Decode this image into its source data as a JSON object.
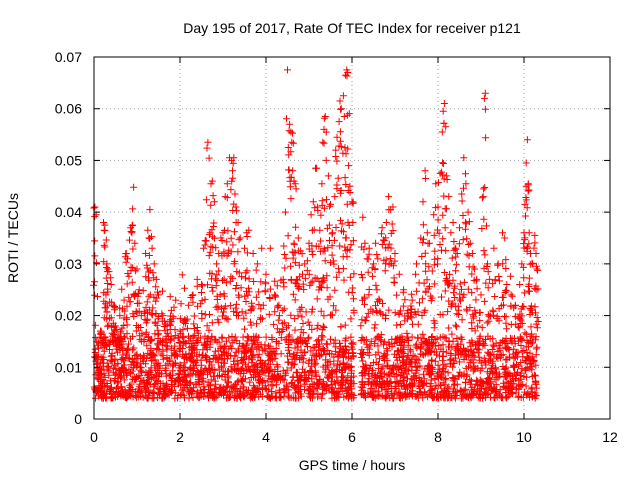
{
  "chart_data": {
    "type": "scatter",
    "title": "Day 195 of 2017, Rate Of TEC Index for receiver p121",
    "xlabel": "GPS time / hours",
    "ylabel": "ROTI / TECUs",
    "xlim": [
      0,
      12
    ],
    "ylim": [
      0,
      0.07
    ],
    "xticks": [
      0,
      2,
      4,
      6,
      8,
      10,
      12
    ],
    "xtick_labels": [
      "0",
      "2",
      "4",
      "6",
      "8",
      "10",
      "12"
    ],
    "yticks": [
      0,
      0.01,
      0.02,
      0.03,
      0.04,
      0.05,
      0.06,
      0.07
    ],
    "ytick_labels": [
      "0",
      "0.01",
      "0.02",
      "0.03",
      "0.04",
      "0.05",
      "0.06",
      "0.07"
    ],
    "grid": true,
    "marker": "+",
    "color": "#ff0000",
    "data_extent_hours": [
      0,
      10.3
    ],
    "gap_hours": [
      6.05,
      6.2
    ],
    "baseline_range": [
      0.004,
      0.016
    ],
    "series": [
      {
        "name": "ROTI",
        "points": [
          [
            0.02,
            0.041
          ],
          [
            0.05,
            0.0395
          ],
          [
            0.08,
            0.012
          ],
          [
            0.1,
            0.009
          ],
          [
            0.12,
            0.006
          ],
          [
            0.15,
            0.017
          ],
          [
            0.22,
            0.038
          ],
          [
            0.25,
            0.0375
          ],
          [
            0.3,
            0.03
          ],
          [
            0.32,
            0.029
          ],
          [
            0.35,
            0.0285
          ],
          [
            0.28,
            0.024
          ],
          [
            0.4,
            0.026
          ],
          [
            0.45,
            0.022
          ],
          [
            0.5,
            0.018
          ],
          [
            0.55,
            0.015
          ],
          [
            0.6,
            0.02
          ],
          [
            0.7,
            0.023
          ],
          [
            0.75,
            0.032
          ],
          [
            0.78,
            0.031
          ],
          [
            0.85,
            0.037
          ],
          [
            0.88,
            0.036
          ],
          [
            0.9,
            0.0375
          ],
          [
            0.92,
            0.0448
          ],
          [
            0.95,
            0.034
          ],
          [
            1.0,
            0.029
          ],
          [
            1.05,
            0.025
          ],
          [
            1.1,
            0.02
          ],
          [
            1.2,
            0.032
          ],
          [
            1.25,
            0.0365
          ],
          [
            1.28,
            0.035
          ],
          [
            1.3,
            0.0405
          ],
          [
            1.35,
            0.033
          ],
          [
            1.4,
            0.03
          ],
          [
            1.45,
            0.027
          ],
          [
            1.5,
            0.024
          ],
          [
            1.6,
            0.02
          ],
          [
            1.7,
            0.018
          ],
          [
            1.8,
            0.021
          ],
          [
            1.9,
            0.023
          ],
          [
            2.0,
            0.017
          ],
          [
            2.1,
            0.019
          ],
          [
            2.2,
            0.022
          ],
          [
            2.3,
            0.024
          ],
          [
            2.4,
            0.027
          ],
          [
            2.5,
            0.026
          ],
          [
            2.55,
            0.033
          ],
          [
            2.6,
            0.0345
          ],
          [
            2.65,
            0.0535
          ],
          [
            2.7,
            0.036
          ],
          [
            2.72,
            0.0455
          ],
          [
            2.75,
            0.046
          ],
          [
            2.8,
            0.042
          ],
          [
            2.85,
            0.03
          ],
          [
            2.9,
            0.032
          ],
          [
            2.95,
            0.035
          ],
          [
            3.0,
            0.036
          ],
          [
            3.05,
            0.043
          ],
          [
            3.1,
            0.0455
          ],
          [
            3.15,
            0.0505
          ],
          [
            3.2,
            0.05
          ],
          [
            3.22,
            0.048
          ],
          [
            3.25,
            0.0505
          ],
          [
            3.28,
            0.0435
          ],
          [
            3.3,
            0.041
          ],
          [
            3.35,
            0.038
          ],
          [
            3.4,
            0.035
          ],
          [
            3.5,
            0.033
          ],
          [
            3.55,
            0.036
          ],
          [
            3.6,
            0.0365
          ],
          [
            3.7,
            0.032
          ],
          [
            3.8,
            0.03
          ],
          [
            3.9,
            0.033
          ],
          [
            4.0,
            0.028
          ],
          [
            4.1,
            0.033
          ],
          [
            4.2,
            0.024
          ],
          [
            4.3,
            0.022
          ],
          [
            4.4,
            0.027
          ],
          [
            4.45,
            0.04
          ],
          [
            4.5,
            0.0675
          ],
          [
            4.55,
            0.057
          ],
          [
            4.58,
            0.0555
          ],
          [
            4.6,
            0.0535
          ],
          [
            4.62,
            0.048
          ],
          [
            4.65,
            0.046
          ],
          [
            4.68,
            0.0455
          ],
          [
            4.7,
            0.0445
          ],
          [
            4.75,
            0.035
          ],
          [
            4.8,
            0.0325
          ],
          [
            4.85,
            0.028
          ],
          [
            4.9,
            0.03
          ],
          [
            5.0,
            0.034
          ],
          [
            5.05,
            0.0395
          ],
          [
            5.1,
            0.042
          ],
          [
            5.15,
            0.0485
          ],
          [
            5.2,
            0.041
          ],
          [
            5.25,
            0.0365
          ],
          [
            5.3,
            0.0455
          ],
          [
            5.32,
            0.0535
          ],
          [
            5.35,
            0.056
          ],
          [
            5.38,
            0.0585
          ],
          [
            5.4,
            0.05
          ],
          [
            5.45,
            0.047
          ],
          [
            5.5,
            0.0415
          ],
          [
            5.55,
            0.036
          ],
          [
            5.6,
            0.043
          ],
          [
            5.62,
            0.052
          ],
          [
            5.65,
            0.0545
          ],
          [
            5.7,
            0.0575
          ],
          [
            5.72,
            0.0615
          ],
          [
            5.75,
            0.06
          ],
          [
            5.8,
            0.0625
          ],
          [
            5.82,
            0.0585
          ],
          [
            5.85,
            0.0665
          ],
          [
            5.88,
            0.0675
          ],
          [
            5.9,
            0.067
          ],
          [
            5.92,
            0.049
          ],
          [
            5.95,
            0.045
          ],
          [
            6.0,
            0.042
          ],
          [
            6.02,
            0.038
          ],
          [
            6.25,
            0.039
          ],
          [
            6.3,
            0.034
          ],
          [
            6.35,
            0.031
          ],
          [
            6.4,
            0.033
          ],
          [
            6.5,
            0.03
          ],
          [
            6.55,
            0.034
          ],
          [
            6.6,
            0.031
          ],
          [
            6.7,
            0.037
          ],
          [
            6.75,
            0.0345
          ],
          [
            6.8,
            0.038
          ],
          [
            6.85,
            0.043
          ],
          [
            6.9,
            0.0405
          ],
          [
            6.95,
            0.041
          ],
          [
            7.0,
            0.032
          ],
          [
            7.1,
            0.028
          ],
          [
            7.2,
            0.025
          ],
          [
            7.3,
            0.021
          ],
          [
            7.4,
            0.023
          ],
          [
            7.5,
            0.03
          ],
          [
            7.6,
            0.035
          ],
          [
            7.65,
            0.042
          ],
          [
            7.7,
            0.048
          ],
          [
            7.75,
            0.036
          ],
          [
            7.8,
            0.034
          ],
          [
            7.9,
            0.0395
          ],
          [
            7.95,
            0.0455
          ],
          [
            8.0,
            0.041
          ],
          [
            8.05,
            0.0475
          ],
          [
            8.1,
            0.0555
          ],
          [
            8.12,
            0.0595
          ],
          [
            8.15,
            0.061
          ],
          [
            8.18,
            0.0565
          ],
          [
            8.2,
            0.047
          ],
          [
            8.25,
            0.043
          ],
          [
            8.3,
            0.036
          ],
          [
            8.35,
            0.038
          ],
          [
            8.4,
            0.033
          ],
          [
            8.45,
            0.032
          ],
          [
            8.5,
            0.037
          ],
          [
            8.55,
            0.0435
          ],
          [
            8.6,
            0.0505
          ],
          [
            8.65,
            0.0455
          ],
          [
            8.7,
            0.04
          ],
          [
            8.75,
            0.034
          ],
          [
            8.8,
            0.032
          ],
          [
            8.85,
            0.029
          ],
          [
            8.9,
            0.027
          ],
          [
            9.0,
            0.024
          ],
          [
            9.05,
            0.043
          ],
          [
            9.08,
            0.062
          ],
          [
            9.1,
            0.063
          ],
          [
            9.15,
            0.03
          ],
          [
            9.2,
            0.027
          ],
          [
            9.3,
            0.033
          ],
          [
            9.4,
            0.03
          ],
          [
            9.5,
            0.036
          ],
          [
            9.55,
            0.035
          ],
          [
            9.6,
            0.026
          ],
          [
            9.7,
            0.024
          ],
          [
            9.8,
            0.022
          ],
          [
            9.9,
            0.026
          ],
          [
            9.95,
            0.03
          ],
          [
            10.0,
            0.036
          ],
          [
            10.02,
            0.0415
          ],
          [
            10.05,
            0.0495
          ],
          [
            10.08,
            0.054
          ],
          [
            10.1,
            0.0455
          ],
          [
            10.12,
            0.036
          ],
          [
            10.15,
            0.032
          ],
          [
            10.2,
            0.03
          ],
          [
            10.25,
            0.0355
          ],
          [
            10.28,
            0.032
          ],
          [
            10.3,
            0.029
          ]
        ]
      }
    ]
  }
}
